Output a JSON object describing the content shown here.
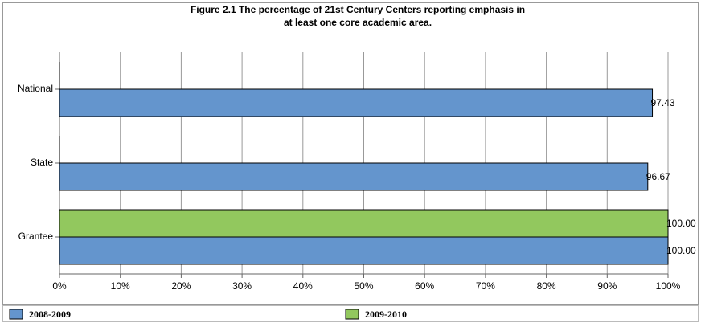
{
  "chart_data": {
    "type": "bar",
    "orientation": "horizontal",
    "title": "Figure 2.1 The percentage of 21st Century Centers reporting emphasis in at least one core academic area.",
    "categories": [
      "National",
      "State",
      "Grantee"
    ],
    "series": [
      {
        "name": "2008-2009",
        "color": "#6495cd",
        "values": [
          97.43,
          96.67,
          100
        ],
        "value_labels": [
          "97.43",
          "96.67",
          "100.00"
        ]
      },
      {
        "name": "2009-2010",
        "color": "#92c85e",
        "values": [
          0,
          0,
          100
        ],
        "value_labels": [
          null,
          null,
          "100.00"
        ]
      }
    ],
    "xlim": [
      0,
      100
    ],
    "xticks": [
      {
        "value": 0,
        "label": "0%"
      },
      {
        "value": 10,
        "label": "10%"
      },
      {
        "value": 20,
        "label": "20%"
      },
      {
        "value": 30,
        "label": "30%"
      },
      {
        "value": 40,
        "label": "40%"
      },
      {
        "value": 50,
        "label": "50%"
      },
      {
        "value": 60,
        "label": "60%"
      },
      {
        "value": 70,
        "label": "70%"
      },
      {
        "value": 80,
        "label": "80%"
      },
      {
        "value": 90,
        "label": "90%"
      },
      {
        "value": 100,
        "label": "100%"
      }
    ],
    "grid": true,
    "legend": "bottom"
  }
}
